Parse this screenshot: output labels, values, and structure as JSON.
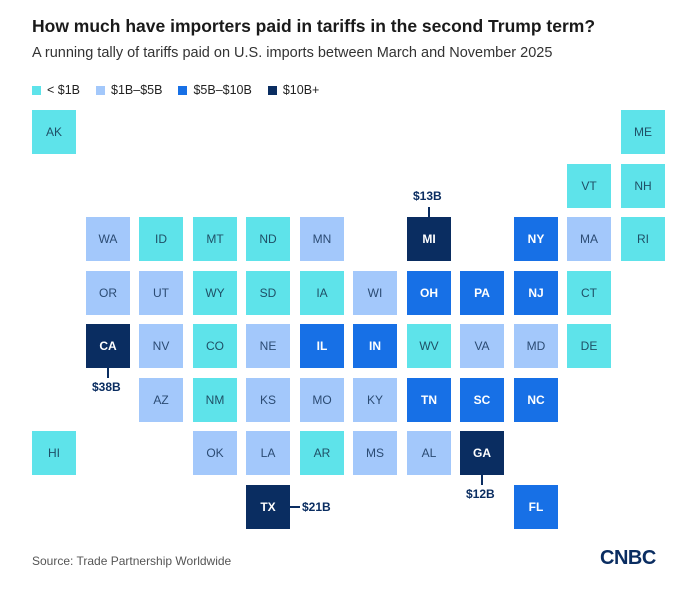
{
  "title": "How much have importers paid in tariffs in the second Trump term?",
  "subtitle": "A running tally of tariffs paid on U.S. imports between March and November 2025",
  "legend": [
    {
      "label": "< $1B",
      "color": "#5ee3ea"
    },
    {
      "label": "$1B–$5B",
      "color": "#a3c8fb"
    },
    {
      "label": "$5B–$10B",
      "color": "#1770e6"
    },
    {
      "label": "$10B+",
      "color": "#0a2d61"
    }
  ],
  "states": [
    {
      "abbr": "AK",
      "bucket": 0,
      "col": 0,
      "row": 0
    },
    {
      "abbr": "ME",
      "bucket": 0,
      "col": 11,
      "row": 0
    },
    {
      "abbr": "VT",
      "bucket": 0,
      "col": 10,
      "row": 1
    },
    {
      "abbr": "NH",
      "bucket": 0,
      "col": 11,
      "row": 1
    },
    {
      "abbr": "WA",
      "bucket": 1,
      "col": 1,
      "row": 2
    },
    {
      "abbr": "ID",
      "bucket": 0,
      "col": 2,
      "row": 2
    },
    {
      "abbr": "MT",
      "bucket": 0,
      "col": 3,
      "row": 2
    },
    {
      "abbr": "ND",
      "bucket": 0,
      "col": 4,
      "row": 2
    },
    {
      "abbr": "MN",
      "bucket": 1,
      "col": 5,
      "row": 2
    },
    {
      "abbr": "MI",
      "bucket": 3,
      "col": 7,
      "row": 2
    },
    {
      "abbr": "NY",
      "bucket": 2,
      "col": 9,
      "row": 2
    },
    {
      "abbr": "MA",
      "bucket": 1,
      "col": 10,
      "row": 2
    },
    {
      "abbr": "RI",
      "bucket": 0,
      "col": 11,
      "row": 2
    },
    {
      "abbr": "OR",
      "bucket": 1,
      "col": 1,
      "row": 3
    },
    {
      "abbr": "UT",
      "bucket": 1,
      "col": 2,
      "row": 3
    },
    {
      "abbr": "WY",
      "bucket": 0,
      "col": 3,
      "row": 3
    },
    {
      "abbr": "SD",
      "bucket": 0,
      "col": 4,
      "row": 3
    },
    {
      "abbr": "IA",
      "bucket": 0,
      "col": 5,
      "row": 3
    },
    {
      "abbr": "WI",
      "bucket": 1,
      "col": 6,
      "row": 3
    },
    {
      "abbr": "OH",
      "bucket": 2,
      "col": 7,
      "row": 3
    },
    {
      "abbr": "PA",
      "bucket": 2,
      "col": 8,
      "row": 3
    },
    {
      "abbr": "NJ",
      "bucket": 2,
      "col": 9,
      "row": 3
    },
    {
      "abbr": "CT",
      "bucket": 0,
      "col": 10,
      "row": 3
    },
    {
      "abbr": "CA",
      "bucket": 3,
      "col": 1,
      "row": 4
    },
    {
      "abbr": "NV",
      "bucket": 1,
      "col": 2,
      "row": 4
    },
    {
      "abbr": "CO",
      "bucket": 0,
      "col": 3,
      "row": 4
    },
    {
      "abbr": "NE",
      "bucket": 1,
      "col": 4,
      "row": 4
    },
    {
      "abbr": "IL",
      "bucket": 2,
      "col": 5,
      "row": 4
    },
    {
      "abbr": "IN",
      "bucket": 2,
      "col": 6,
      "row": 4
    },
    {
      "abbr": "WV",
      "bucket": 0,
      "col": 7,
      "row": 4
    },
    {
      "abbr": "VA",
      "bucket": 1,
      "col": 8,
      "row": 4
    },
    {
      "abbr": "MD",
      "bucket": 1,
      "col": 9,
      "row": 4
    },
    {
      "abbr": "DE",
      "bucket": 0,
      "col": 10,
      "row": 4
    },
    {
      "abbr": "AZ",
      "bucket": 1,
      "col": 2,
      "row": 5
    },
    {
      "abbr": "NM",
      "bucket": 0,
      "col": 3,
      "row": 5
    },
    {
      "abbr": "KS",
      "bucket": 1,
      "col": 4,
      "row": 5
    },
    {
      "abbr": "MO",
      "bucket": 1,
      "col": 5,
      "row": 5
    },
    {
      "abbr": "KY",
      "bucket": 1,
      "col": 6,
      "row": 5
    },
    {
      "abbr": "TN",
      "bucket": 2,
      "col": 7,
      "row": 5
    },
    {
      "abbr": "SC",
      "bucket": 2,
      "col": 8,
      "row": 5
    },
    {
      "abbr": "NC",
      "bucket": 2,
      "col": 9,
      "row": 5
    },
    {
      "abbr": "HI",
      "bucket": 0,
      "col": 0,
      "row": 6
    },
    {
      "abbr": "OK",
      "bucket": 1,
      "col": 3,
      "row": 6
    },
    {
      "abbr": "LA",
      "bucket": 1,
      "col": 4,
      "row": 6
    },
    {
      "abbr": "AR",
      "bucket": 0,
      "col": 5,
      "row": 6
    },
    {
      "abbr": "MS",
      "bucket": 1,
      "col": 6,
      "row": 6
    },
    {
      "abbr": "AL",
      "bucket": 1,
      "col": 7,
      "row": 6
    },
    {
      "abbr": "GA",
      "bucket": 3,
      "col": 8,
      "row": 6
    },
    {
      "abbr": "TX",
      "bucket": 3,
      "col": 4,
      "row": 7
    },
    {
      "abbr": "FL",
      "bucket": 2,
      "col": 9,
      "row": 7
    }
  ],
  "callouts": [
    {
      "state": "MI",
      "label": "$13B",
      "side": "top"
    },
    {
      "state": "CA",
      "label": "$38B",
      "side": "bottom"
    },
    {
      "state": "GA",
      "label": "$12B",
      "side": "bottom"
    },
    {
      "state": "TX",
      "label": "$21B",
      "side": "right"
    }
  ],
  "source": "Source: Trade Partnership Worldwide",
  "brand": "CNBC"
}
